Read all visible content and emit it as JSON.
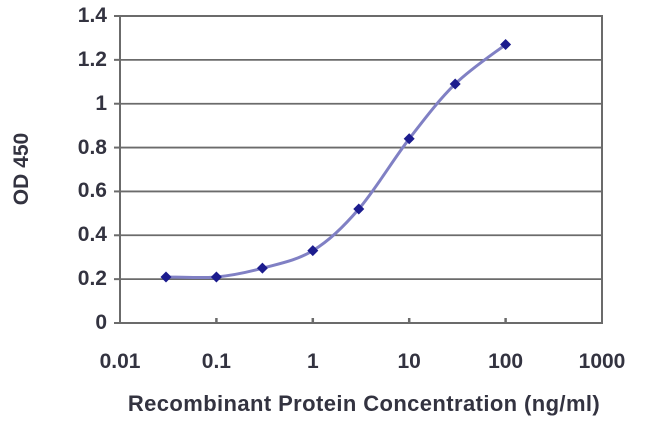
{
  "chart_data": {
    "type": "line",
    "title": "",
    "xlabel": "Recombinant Protein Concentration (ng/ml)",
    "ylabel": "OD 450",
    "x_scale": "log",
    "xlim": [
      0.01,
      1000
    ],
    "ylim": [
      0,
      1.4
    ],
    "grid": "horizontal",
    "legend": "none",
    "x_ticks": [
      {
        "value": 0.01,
        "label": "0.01"
      },
      {
        "value": 0.1,
        "label": "0.1"
      },
      {
        "value": 1,
        "label": "1"
      },
      {
        "value": 10,
        "label": "10"
      },
      {
        "value": 100,
        "label": "100"
      },
      {
        "value": 1000,
        "label": "1000"
      }
    ],
    "y_ticks": [
      {
        "value": 0,
        "label": "0"
      },
      {
        "value": 0.2,
        "label": "0.2"
      },
      {
        "value": 0.4,
        "label": "0.4"
      },
      {
        "value": 0.6,
        "label": "0.6"
      },
      {
        "value": 0.8,
        "label": "0.8"
      },
      {
        "value": 1,
        "label": "1"
      },
      {
        "value": 1.2,
        "label": "1.2"
      },
      {
        "value": 1.4,
        "label": "1.4"
      }
    ],
    "series": [
      {
        "name": "OD 450",
        "x": [
          0.03,
          0.1,
          0.3,
          1,
          3,
          10,
          30,
          100
        ],
        "y": [
          0.21,
          0.21,
          0.25,
          0.33,
          0.52,
          0.84,
          1.09,
          1.27
        ],
        "marker": "diamond",
        "smooth": true,
        "line_color": "#8080c4",
        "marker_color": "#1c1c8e"
      }
    ],
    "colors": {
      "gridline": "#6b6b6b",
      "frame": "#6b6b6b",
      "text": "#333340",
      "background": "#ffffff"
    }
  }
}
